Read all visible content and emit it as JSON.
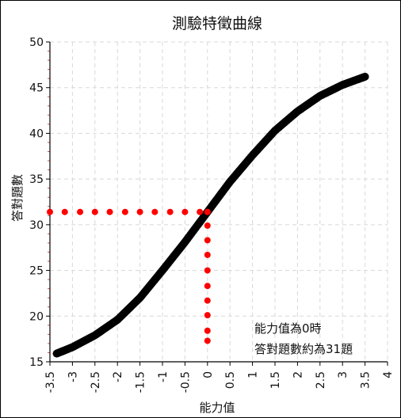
{
  "chart_data": {
    "type": "scatter",
    "title": "測驗特徵曲線",
    "xlabel": "能力值",
    "ylabel": "答對題數",
    "xlim": [
      -3.5,
      4
    ],
    "ylim": [
      15,
      50
    ],
    "x_ticks": [
      "-3.5",
      "-3",
      "-2.5",
      "-2",
      "-1.5",
      "-1",
      "-0.5",
      "0",
      "0.5",
      "1",
      "1.5",
      "2",
      "2.5",
      "3",
      "3.5",
      "4"
    ],
    "y_ticks": [
      "15",
      "20",
      "25",
      "30",
      "35",
      "40",
      "45",
      "50"
    ],
    "grid": true,
    "curve": {
      "color": "#000000",
      "x": [
        -3.35,
        -3.0,
        -2.5,
        -2.0,
        -1.5,
        -1.0,
        -0.5,
        0.0,
        0.5,
        1.0,
        1.5,
        2.0,
        2.5,
        3.0,
        3.5
      ],
      "y": [
        15.9,
        16.6,
        17.9,
        19.6,
        22.0,
        25.0,
        28.1,
        31.4,
        34.7,
        37.6,
        40.3,
        42.4,
        44.1,
        45.3,
        46.2
      ]
    },
    "guide_horizontal": {
      "color": "#ff0000",
      "y": 31.4,
      "x": [
        -3.5,
        -3.17,
        -2.83,
        -2.5,
        -2.17,
        -1.83,
        -1.5,
        -1.17,
        -0.83,
        -0.5,
        -0.17,
        0.0
      ]
    },
    "guide_vertical": {
      "color": "#ff0000",
      "x": 0.0,
      "y": [
        31.4,
        29.9,
        28.3,
        26.7,
        25.0,
        23.3,
        21.7,
        20.1,
        18.4,
        17.3
      ]
    },
    "annotation": [
      "能力值為0時",
      "答對題數約為31題"
    ]
  }
}
